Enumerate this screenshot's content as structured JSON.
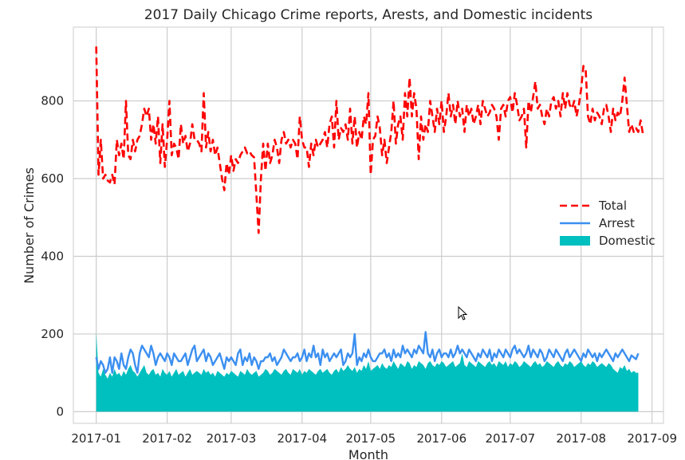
{
  "chart_data": {
    "type": "line",
    "title": "2017 Daily Chicago Crime reports, Arests, and Domestic incidents",
    "xlabel": "Month",
    "ylabel": "Number of Crimes",
    "x_date_range": [
      "2017-01-01",
      "2017-08-27"
    ],
    "xlim": [
      "2016-12-22",
      "2017-09-06"
    ],
    "ylim": [
      -30,
      990
    ],
    "x_ticks": [
      "2017-01",
      "2017-02",
      "2017-03",
      "2017-04",
      "2017-05",
      "2017-06",
      "2017-07",
      "2017-08",
      "2017-09"
    ],
    "y_ticks": [
      0,
      200,
      400,
      600,
      800
    ],
    "grid": true,
    "legend_position": "center-right",
    "series": [
      {
        "name": "Total",
        "style": "dashed",
        "color": "#ff0000",
        "values": [
          940,
          610,
          700,
          600,
          610,
          595,
          590,
          610,
          585,
          700,
          660,
          690,
          650,
          800,
          660,
          650,
          700,
          670,
          700,
          710,
          740,
          780,
          760,
          780,
          700,
          740,
          690,
          760,
          640,
          740,
          630,
          700,
          800,
          660,
          690,
          680,
          650,
          740,
          690,
          710,
          670,
          690,
          740,
          700,
          700,
          690,
          670,
          820,
          680,
          720,
          670,
          700,
          660,
          680,
          640,
          600,
          570,
          640,
          610,
          660,
          620,
          650,
          640,
          660,
          670,
          680,
          665,
          670,
          660,
          655,
          560,
          460,
          600,
          690,
          620,
          690,
          640,
          660,
          700,
          680,
          640,
          700,
          720,
          690,
          700,
          680,
          700,
          690,
          650,
          760,
          700,
          680,
          680,
          630,
          690,
          660,
          700,
          680,
          690,
          700,
          720,
          680,
          740,
          760,
          680,
          800,
          700,
          730,
          720,
          740,
          700,
          780,
          690,
          760,
          680,
          720,
          700,
          760,
          740,
          820,
          610,
          700,
          710,
          760,
          730,
          660,
          700,
          640,
          680,
          720,
          800,
          690,
          740,
          760,
          700,
          820,
          760,
          860,
          760,
          820,
          780,
          650,
          760,
          700,
          740,
          720,
          800,
          760,
          720,
          780,
          740,
          800,
          720,
          760,
          820,
          760,
          790,
          740,
          800,
          760,
          780,
          720,
          790,
          760,
          780,
          740,
          760,
          790,
          740,
          800,
          780,
          760,
          770,
          790,
          780,
          760,
          700,
          780,
          790,
          760,
          800,
          810,
          770,
          820,
          790,
          750,
          760,
          780,
          680,
          800,
          770,
          810,
          850,
          780,
          790,
          760,
          740,
          780,
          760,
          800,
          810,
          780,
          800,
          760,
          820,
          780,
          820,
          790,
          780,
          800,
          760,
          790,
          830,
          890,
          880,
          760,
          740,
          780,
          750,
          770,
          760,
          740,
          780,
          790,
          760,
          720,
          780,
          750,
          770,
          760,
          800,
          860,
          790,
          720,
          740,
          720,
          730,
          720,
          750,
          715
        ],
        "values_total_adjust": "none"
      },
      {
        "name": "Arrest",
        "style": "solid",
        "color": "#3b8ff0",
        "values": [
          140,
          110,
          130,
          120,
          100,
          110,
          140,
          100,
          140,
          130,
          110,
          150,
          120,
          110,
          140,
          160,
          150,
          120,
          100,
          150,
          170,
          160,
          150,
          140,
          170,
          150,
          120,
          140,
          150,
          140,
          130,
          150,
          140,
          120,
          150,
          140,
          130,
          130,
          140,
          150,
          120,
          140,
          160,
          170,
          130,
          140,
          150,
          160,
          130,
          150,
          140,
          120,
          130,
          140,
          150,
          130,
          110,
          140,
          130,
          140,
          130,
          120,
          150,
          160,
          120,
          140,
          130,
          150,
          120,
          140,
          130,
          110,
          130,
          130,
          140,
          140,
          150,
          130,
          140,
          120,
          130,
          140,
          160,
          150,
          140,
          130,
          140,
          140,
          150,
          130,
          140,
          160,
          130,
          150,
          140,
          170,
          140,
          150,
          120,
          160,
          140,
          150,
          130,
          140,
          150,
          140,
          150,
          160,
          120,
          130,
          150,
          140,
          150,
          200,
          120,
          140,
          130,
          150,
          140,
          160,
          140,
          130,
          130,
          140,
          150,
          150,
          160,
          140,
          150,
          130,
          160,
          140,
          150,
          140,
          170,
          150,
          160,
          150,
          140,
          160,
          150,
          170,
          160,
          150,
          205,
          150,
          140,
          160,
          130,
          150,
          160,
          140,
          150,
          150,
          140,
          160,
          140,
          150,
          170,
          150,
          160,
          150,
          140,
          160,
          150,
          140,
          130,
          150,
          140,
          160,
          150,
          140,
          160,
          130,
          150,
          140,
          160,
          150,
          140,
          160,
          150,
          140,
          160,
          170,
          150,
          160,
          150,
          140,
          150,
          170,
          140,
          160,
          150,
          140,
          160,
          150,
          130,
          140,
          160,
          150,
          140,
          160,
          150,
          140,
          130,
          150,
          160,
          140,
          150,
          160,
          150,
          140,
          130,
          150,
          140,
          160,
          150,
          140,
          150,
          130,
          150,
          140,
          150,
          160,
          150,
          140,
          130,
          150,
          140,
          150,
          160,
          150,
          140,
          130,
          145,
          140,
          135,
          150
        ]
      },
      {
        "name": "Domestic",
        "style": "filled-area",
        "color": "#00bfbf",
        "values": [
          205,
          100,
          90,
          110,
          95,
          85,
          100,
          90,
          110,
          95,
          100,
          90,
          105,
          95,
          110,
          120,
          105,
          100,
          90,
          100,
          110,
          120,
          100,
          95,
          105,
          110,
          95,
          100,
          90,
          110,
          100,
          95,
          105,
          90,
          100,
          110,
          95,
          100,
          105,
          90,
          100,
          110,
          95,
          100,
          105,
          100,
          95,
          110,
          100,
          105,
          95,
          100,
          90,
          105,
          100,
          95,
          90,
          100,
          95,
          105,
          100,
          95,
          90,
          105,
          100,
          95,
          110,
          100,
          95,
          100,
          105,
          90,
          95,
          100,
          110,
          105,
          95,
          100,
          110,
          105,
          100,
          95,
          105,
          110,
          100,
          95,
          110,
          105,
          100,
          110,
          95,
          105,
          100,
          110,
          105,
          100,
          95,
          105,
          110,
          100,
          105,
          110,
          100,
          95,
          105,
          110,
          100,
          115,
          105,
          110,
          120,
          110,
          105,
          115,
          100,
          110,
          105,
          120,
          110,
          130,
          105,
          110,
          115,
          120,
          110,
          125,
          115,
          110,
          120,
          115,
          130,
          120,
          110,
          125,
          120,
          115,
          130,
          125,
          110,
          120,
          115,
          130,
          125,
          120,
          110,
          125,
          130,
          120,
          115,
          125,
          120,
          130,
          125,
          115,
          120,
          125,
          130,
          115,
          120,
          125,
          150,
          120,
          115,
          130,
          125,
          120,
          115,
          130,
          125,
          120,
          115,
          125,
          130,
          120,
          125,
          115,
          130,
          125,
          120,
          130,
          115,
          125,
          120,
          130,
          125,
          115,
          120,
          130,
          125,
          120,
          115,
          125,
          130,
          120,
          125,
          115,
          120,
          130,
          125,
          120,
          115,
          125,
          130,
          120,
          115,
          125,
          120,
          130,
          125,
          115,
          120,
          125,
          130,
          120,
          115,
          125,
          120,
          130,
          125,
          115,
          120,
          125,
          120,
          115,
          125,
          120,
          110,
          105,
          100,
          115,
          110,
          120,
          105,
          110,
          100,
          105,
          100,
          100
        ]
      }
    ]
  }
}
